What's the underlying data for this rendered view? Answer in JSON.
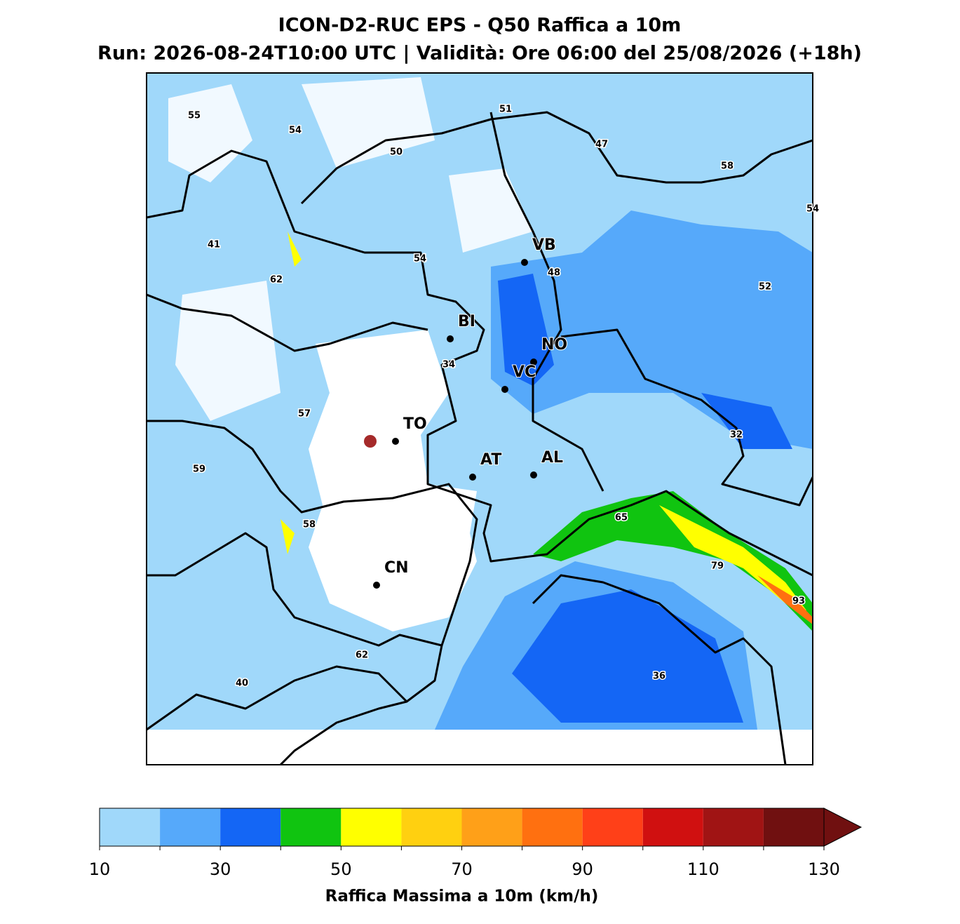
{
  "title": "ICON-D2-RUC EPS - Q50 Raffica a 10m",
  "subtitle": "Run: 2026-08-24T10:00 UTC | Validità: Ore 06:00 del 25/08/2026 (+18h)",
  "map": {
    "cities": [
      "VB",
      "BI",
      "NO",
      "VC",
      "TO",
      "AT",
      "AL",
      "CN"
    ],
    "value_labels": [
      55,
      54,
      50,
      51,
      47,
      58,
      54,
      41,
      62,
      54,
      48,
      52,
      34,
      57,
      32,
      59,
      58,
      65,
      79,
      93,
      62,
      40,
      36
    ]
  },
  "colorbar": {
    "label": "Raffica Massima a 10m (km/h)",
    "bounds": [
      10,
      20,
      30,
      40,
      50,
      60,
      70,
      80,
      90,
      100,
      110,
      120,
      130
    ],
    "colors": [
      "#a0d8fa",
      "#56a9fa",
      "#1466f5",
      "#10c410",
      "#ffff00",
      "#ffd010",
      "#ffa018",
      "#ff7010",
      "#ff4018",
      "#d01010",
      "#a01414",
      "#701010"
    ],
    "ticks": [
      10,
      30,
      50,
      70,
      90,
      110,
      130
    ],
    "extend": "max"
  }
}
